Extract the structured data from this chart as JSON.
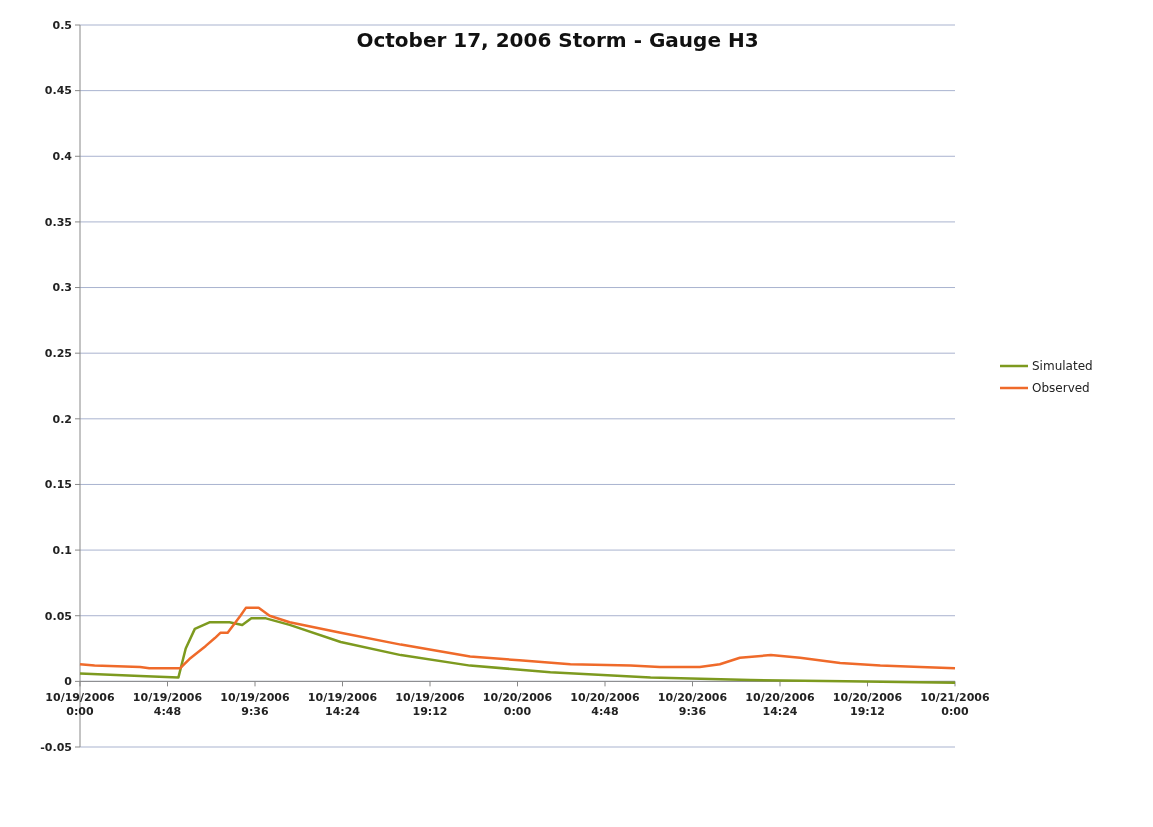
{
  "chart_data": {
    "type": "line",
    "title": "October 17, 2006 Storm - Gauge H3",
    "xlim": [
      "2006-10-19T00:00",
      "2006-10-21T00:00"
    ],
    "xticks": [
      {
        "value": "2006-10-19T00:00",
        "label": "10/19/2006 0:00"
      },
      {
        "value": "2006-10-19T04:48",
        "label": "10/19/2006 4:48"
      },
      {
        "value": "2006-10-19T09:36",
        "label": "10/19/2006 9:36"
      },
      {
        "value": "2006-10-19T14:24",
        "label": "10/19/2006 14:24"
      },
      {
        "value": "2006-10-19T19:12",
        "label": "10/19/2006 19:12"
      },
      {
        "value": "2006-10-20T00:00",
        "label": "10/20/2006 0:00"
      },
      {
        "value": "2006-10-20T04:48",
        "label": "10/20/2006 4:48"
      },
      {
        "value": "2006-10-20T09:36",
        "label": "10/20/2006 9:36"
      },
      {
        "value": "2006-10-20T14:24",
        "label": "10/20/2006 14:24"
      },
      {
        "value": "2006-10-20T19:12",
        "label": "10/20/2006 19:12"
      },
      {
        "value": "2006-10-21T00:00",
        "label": "10/21/2006 0:00"
      }
    ],
    "ylim": [
      -0.05,
      0.5
    ],
    "yticks": [
      -0.05,
      0,
      0.05,
      0.1,
      0.15,
      0.2,
      0.25,
      0.3,
      0.35,
      0.4,
      0.45,
      0.5
    ],
    "grid": "y",
    "legend": "right",
    "marker": "none",
    "line_style": "solid",
    "series": [
      {
        "name": "Simulated",
        "color": "#7d9a1f",
        "x": [
          "2006-10-19T00:00",
          "2006-10-19T03:18",
          "2006-10-19T05:24",
          "2006-10-19T05:48",
          "2006-10-19T06:18",
          "2006-10-19T07:06",
          "2006-10-19T08:12",
          "2006-10-19T08:54",
          "2006-10-19T09:24",
          "2006-10-19T10:12",
          "2006-10-19T11:30",
          "2006-10-19T14:18",
          "2006-10-19T17:36",
          "2006-10-19T21:24",
          "2006-10-20T01:48",
          "2006-10-20T07:18",
          "2006-10-20T12:48",
          "2006-10-20T18:00",
          "2006-10-21T00:00"
        ],
        "values": [
          0.006,
          0.004,
          0.003,
          0.025,
          0.04,
          0.045,
          0.045,
          0.043,
          0.048,
          0.048,
          0.043,
          0.03,
          0.02,
          0.012,
          0.007,
          0.003,
          0.001,
          0,
          -0.001
        ]
      },
      {
        "name": "Observed",
        "color": "#ef6a2a",
        "x": [
          "2006-10-19T00:00",
          "2006-10-19T00:48",
          "2006-10-19T03:18",
          "2006-10-19T03:48",
          "2006-10-19T05:30",
          "2006-10-19T06:00",
          "2006-10-19T06:54",
          "2006-10-19T07:24",
          "2006-10-19T07:42",
          "2006-10-19T08:06",
          "2006-10-19T08:48",
          "2006-10-19T09:06",
          "2006-10-19T09:48",
          "2006-10-19T10:24",
          "2006-10-19T11:30",
          "2006-10-19T14:18",
          "2006-10-19T17:36",
          "2006-10-19T21:24",
          "2006-10-20T00:06",
          "2006-10-20T02:54",
          "2006-10-20T06:12",
          "2006-10-20T07:48",
          "2006-10-20T10:00",
          "2006-10-20T11:06",
          "2006-10-20T12:12",
          "2006-10-20T13:54",
          "2006-10-20T15:30",
          "2006-10-20T17:42",
          "2006-10-20T19:54",
          "2006-10-20T22:06",
          "2006-10-21T00:00"
        ],
        "values": [
          0.013,
          0.012,
          0.011,
          0.01,
          0.01,
          0.017,
          0.027,
          0.033,
          0.037,
          0.037,
          0.05,
          0.056,
          0.056,
          0.05,
          0.045,
          0.037,
          0.028,
          0.019,
          0.016,
          0.013,
          0.012,
          0.011,
          0.011,
          0.013,
          0.018,
          0.02,
          0.018,
          0.014,
          0.012,
          0.011,
          0.01
        ]
      }
    ]
  }
}
